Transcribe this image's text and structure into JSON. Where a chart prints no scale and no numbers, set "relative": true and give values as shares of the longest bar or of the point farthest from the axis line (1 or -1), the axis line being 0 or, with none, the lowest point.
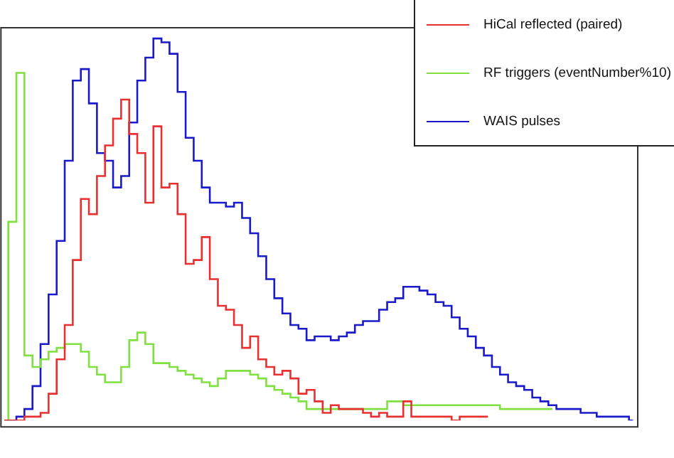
{
  "chart_data": {
    "type": "step",
    "relative": true,
    "legend": "top right",
    "categories": [
      null,
      null,
      null,
      null,
      null,
      null,
      null,
      null,
      null,
      null,
      null,
      null,
      null,
      null,
      null,
      null,
      null,
      null,
      null,
      null,
      null,
      null,
      null,
      null,
      null,
      null,
      null,
      null,
      null,
      null,
      null,
      null,
      null,
      null,
      null,
      null,
      null,
      null,
      null,
      null,
      null,
      null,
      null,
      null,
      null,
      null,
      null,
      null,
      null,
      null,
      null,
      null,
      null,
      null,
      null,
      null,
      null,
      null,
      null,
      null,
      null,
      null,
      null,
      null,
      null,
      null,
      null,
      null,
      null,
      null,
      null,
      null,
      null,
      null,
      null,
      null,
      null,
      null,
      null
    ],
    "series": [
      {
        "name": "HiCal reflected (paired)",
        "color": "#e83030",
        "values": [
          0,
          0,
          0,
          0.01,
          0.01,
          0.02,
          0.07,
          0.16,
          0.25,
          0.42,
          0.58,
          0.54,
          0.64,
          0.72,
          0.79,
          0.84,
          0.75,
          0.7,
          0.57,
          0.77,
          0.61,
          0.62,
          0.54,
          0.41,
          0.42,
          0.48,
          0.37,
          0.3,
          0.29,
          0.25,
          0.19,
          0.22,
          0.16,
          0.14,
          0.12,
          0.13,
          0.11,
          0.07,
          0.08,
          0.05,
          0.02,
          0.04,
          0.03,
          0.03,
          0.03,
          0.02,
          0.01,
          0.02,
          0.01,
          0.01,
          0.05,
          0.01,
          0.01,
          0.01,
          0.01,
          0.01,
          0,
          0.01,
          0.01,
          0.01,
          0.01,
          null,
          null,
          null,
          null,
          null,
          null,
          null,
          null,
          null,
          null,
          null,
          null,
          null,
          null,
          null,
          null,
          null,
          null
        ]
      },
      {
        "name": "RF triggers (eventNumber%10)",
        "color": "#80e040",
        "values": [
          0,
          0.52,
          0.91,
          0.17,
          0.14,
          0.16,
          0.18,
          0.19,
          0.2,
          0.2,
          0.18,
          0.14,
          0.12,
          0.1,
          0.1,
          0.14,
          0.21,
          0.23,
          0.2,
          0.15,
          0.15,
          0.14,
          0.13,
          0.12,
          0.11,
          0.1,
          0.09,
          0.11,
          0.13,
          0.13,
          0.13,
          0.12,
          0.11,
          0.09,
          0.08,
          0.07,
          0.06,
          0.05,
          0.03,
          0.03,
          0.03,
          0.03,
          0.03,
          0.03,
          0.03,
          0.03,
          0.03,
          0.03,
          0.05,
          0.05,
          0.04,
          0.04,
          0.04,
          0.04,
          0.04,
          0.04,
          0.04,
          0.04,
          0.04,
          0.04,
          0.04,
          0.04,
          0.03,
          0.03,
          0.03,
          0.03,
          0.03,
          0.03,
          0.03,
          null,
          null,
          null,
          null,
          null,
          null,
          null,
          null,
          null,
          null
        ]
      },
      {
        "name": "WAIS pulses",
        "color": "#1a1ac8",
        "values": [
          0,
          0,
          0.01,
          0.03,
          0.09,
          0.2,
          0.33,
          0.47,
          0.68,
          0.89,
          0.92,
          0.83,
          0.7,
          0.68,
          0.61,
          0.64,
          0.78,
          0.89,
          0.95,
          1,
          0.99,
          0.96,
          0.86,
          0.74,
          0.68,
          0.61,
          0.57,
          0.57,
          0.56,
          0.57,
          0.53,
          0.49,
          0.43,
          0.37,
          0.32,
          0.28,
          0.25,
          0.24,
          0.21,
          0.22,
          0.22,
          0.21,
          0.22,
          0.23,
          0.25,
          0.26,
          0.26,
          0.29,
          0.31,
          0.32,
          0.35,
          0.35,
          0.34,
          0.33,
          0.31,
          0.3,
          0.27,
          0.24,
          0.22,
          0.19,
          0.17,
          0.14,
          0.12,
          0.1,
          0.09,
          0.08,
          0.06,
          0.05,
          0.04,
          0.03,
          0.03,
          0.03,
          0.02,
          0.02,
          0.01,
          0.01,
          0.01,
          0.01,
          0
        ]
      }
    ]
  }
}
